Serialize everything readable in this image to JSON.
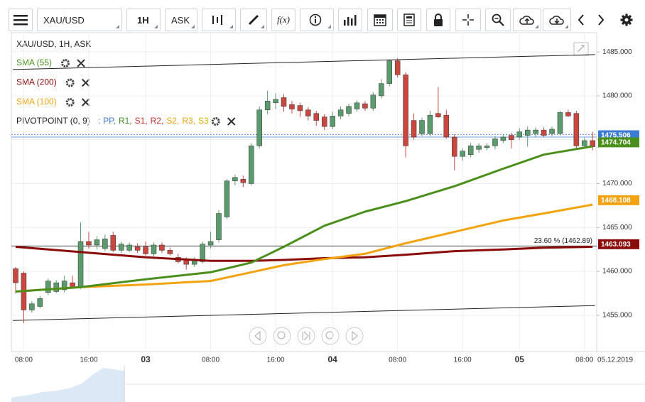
{
  "toolbar": {
    "symbol": "XAU/USD",
    "interval": "1H",
    "price_type": "ASK",
    "fx": "f(x)"
  },
  "chart_data": {
    "type": "candlestick",
    "title": "XAU/USD, 1H, ASK",
    "date_label": "05.12.2019",
    "categories": [
      null,
      "08:00",
      null,
      null,
      null,
      null,
      null,
      null,
      null,
      "16:00",
      null,
      null,
      null,
      null,
      null,
      null,
      "03",
      null,
      null,
      null,
      null,
      null,
      null,
      null,
      "08:00",
      null,
      null,
      null,
      null,
      null,
      null,
      null,
      "16:00",
      null,
      null,
      null,
      null,
      null,
      null,
      "04",
      null,
      null,
      null,
      null,
      null,
      null,
      null,
      "08:00",
      null,
      null,
      null,
      null,
      null,
      null,
      null,
      "16:00",
      null,
      null,
      null,
      null,
      null,
      null,
      "05",
      null,
      null,
      null,
      null,
      null,
      null,
      null,
      "08:00",
      null
    ],
    "candles": {
      "up_color": "#5a9a6c",
      "down_color": "#c9473f",
      "open": [
        1460.3,
        1459.8,
        1455.6,
        1456.0,
        1457.6,
        1457.7,
        1457.9,
        1458.7,
        1458.3,
        1463.4,
        1463.0,
        1462.6,
        1464.1,
        1462.4,
        1462.4,
        1462.8,
        1462.8,
        1462.0,
        1463.0,
        1462.4,
        1461.6,
        1461.3,
        1460.8,
        1461.1,
        1463.0,
        1463.6,
        1466.2,
        1470.3,
        1470.5,
        1470.0,
        1474.3,
        1478.4,
        1479.2,
        1479.8,
        1479.0,
        1478.9,
        1478.4,
        1478.0,
        1477.6,
        1476.5,
        1477.7,
        1478.0,
        1478.5,
        1479.1,
        1478.6,
        1480.0,
        1481.4,
        1484.0,
        1482.4,
        1477.2,
        1475.7,
        1475.7,
        1478.0,
        1477.8,
        1475.3,
        1473.1,
        1473.3,
        1473.9,
        1474.1,
        1474.3,
        1474.9,
        1475.5,
        1475.3,
        1475.5,
        1475.7,
        1476.1,
        1475.7,
        1475.7,
        1478.1,
        1478.0,
        1474.3,
        1474.9
      ],
      "high": [
        1460.5,
        1460.0,
        1456.6,
        1457.2,
        1459.2,
        1459.0,
        1459.5,
        1459.5,
        1465.6,
        1464.5,
        1464.0,
        1464.2,
        1464.5,
        1463.4,
        1463.3,
        1463.2,
        1463.4,
        1463.3,
        1463.3,
        1462.7,
        1462.0,
        1461.6,
        1461.6,
        1463.4,
        1464.5,
        1467.0,
        1470.5,
        1471.0,
        1470.9,
        1474.6,
        1478.8,
        1480.6,
        1480.3,
        1480.2,
        1479.4,
        1479.2,
        1478.7,
        1478.3,
        1477.9,
        1478.2,
        1478.8,
        1479.1,
        1479.5,
        1479.4,
        1480.4,
        1481.9,
        1484.2,
        1484.3,
        1482.7,
        1478.0,
        1477.5,
        1478.3,
        1481.0,
        1478.4,
        1475.6,
        1474.0,
        1474.6,
        1474.6,
        1474.6,
        1475.4,
        1475.6,
        1475.8,
        1476.3,
        1476.5,
        1476.4,
        1476.4,
        1476.5,
        1478.3,
        1478.4,
        1478.3,
        1475.2,
        1475.9
      ],
      "low": [
        1457.5,
        1454.1,
        1455.3,
        1455.8,
        1457.3,
        1457.5,
        1457.6,
        1458.0,
        1458.0,
        1462.6,
        1462.5,
        1462.3,
        1462.2,
        1462.1,
        1462.2,
        1462.1,
        1461.8,
        1461.7,
        1462.1,
        1461.8,
        1460.9,
        1460.2,
        1460.5,
        1460.9,
        1462.6,
        1463.3,
        1466.0,
        1469.8,
        1469.6,
        1469.8,
        1474.0,
        1477.9,
        1478.5,
        1478.2,
        1478.0,
        1477.6,
        1477.2,
        1476.6,
        1476.1,
        1476.2,
        1477.3,
        1477.7,
        1478.2,
        1478.3,
        1478.3,
        1479.7,
        1481.1,
        1482.1,
        1473.0,
        1475.0,
        1475.4,
        1475.4,
        1477.5,
        1475.1,
        1471.5,
        1472.6,
        1473.0,
        1473.5,
        1473.8,
        1473.9,
        1474.6,
        1474.0,
        1475.0,
        1474.2,
        1475.3,
        1475.3,
        1475.4,
        1475.5,
        1477.6,
        1474.0,
        1474.0,
        1473.8
      ],
      "close": [
        1458.7,
        1455.6,
        1456.3,
        1456.9,
        1458.9,
        1458.7,
        1458.9,
        1458.2,
        1463.4,
        1463.0,
        1463.6,
        1463.7,
        1462.4,
        1463.1,
        1463.0,
        1462.4,
        1462.0,
        1463.0,
        1462.4,
        1462.0,
        1461.1,
        1460.8,
        1461.3,
        1463.1,
        1463.4,
        1466.6,
        1470.3,
        1470.7,
        1470.1,
        1474.3,
        1478.4,
        1479.4,
        1479.6,
        1478.8,
        1478.5,
        1478.3,
        1477.7,
        1477.2,
        1476.5,
        1477.7,
        1478.4,
        1478.8,
        1479.2,
        1478.6,
        1480.1,
        1481.4,
        1484.0,
        1482.4,
        1474.3,
        1475.3,
        1477.2,
        1477.8,
        1477.6,
        1475.3,
        1473.1,
        1473.7,
        1474.3,
        1474.3,
        1474.3,
        1475.1,
        1475.3,
        1475.0,
        1475.9,
        1476.1,
        1476.1,
        1475.5,
        1476.2,
        1478.1,
        1477.7,
        1474.3,
        1474.9,
        1474.2
      ]
    },
    "series": [
      {
        "name": "SMA (55)",
        "color": "#4a8f1c",
        "x": [
          0,
          8,
          16,
          24,
          29,
          33,
          38,
          43,
          48,
          54,
          60,
          65,
          71
        ],
        "values": [
          1457.7,
          1458.2,
          1459.1,
          1459.9,
          1461.0,
          1462.8,
          1465.2,
          1466.8,
          1468.0,
          1469.7,
          1471.7,
          1473.3,
          1474.25
        ],
        "last_value": 1474.704
      },
      {
        "name": "SMA (200)",
        "color": "#8b0a0a",
        "x": [
          0,
          8,
          16,
          24,
          29,
          33,
          38,
          43,
          48,
          54,
          60,
          65,
          71
        ],
        "values": [
          1462.8,
          1462.2,
          1461.6,
          1461.2,
          1461.2,
          1461.3,
          1461.5,
          1461.6,
          1461.9,
          1462.3,
          1462.5,
          1462.7,
          1462.8
        ],
        "last_value": 1463.093
      },
      {
        "name": "SMA (100)",
        "color": "#f2a30f",
        "x": [
          0,
          8,
          16,
          24,
          29,
          33,
          38,
          43,
          48,
          54,
          60,
          65,
          71
        ],
        "values": [
          1457.7,
          1458.2,
          1458.5,
          1458.9,
          1459.9,
          1460.7,
          1461.4,
          1462.0,
          1463.2,
          1464.5,
          1465.8,
          1466.6,
          1467.6
        ],
        "last_value": 1468.108
      }
    ],
    "pivot": {
      "name": "PIVOTPOINT (0, 9)",
      "separator": ":",
      "levels": [
        {
          "name": "PP,",
          "color": "#3a7bd5"
        },
        {
          "name": "R1,",
          "color": "#3f8f2a"
        },
        {
          "name": "S1,",
          "color": "#c9302c"
        },
        {
          "name": "R2,",
          "color": "#c9302c"
        },
        {
          "name": "S2,",
          "color": "#f2a30f"
        },
        {
          "name": "R3,",
          "color": "#f2a30f"
        },
        {
          "name": "S3",
          "color": "#e0b000"
        }
      ]
    },
    "price_line": {
      "values": [
        1475.6,
        1475.3
      ],
      "tag": 1475.506,
      "color": "#3a7bd5"
    },
    "trendlines": [
      {
        "x": [
          -0.35,
          71.3
        ],
        "values": [
          1483.0,
          1484.7
        ]
      },
      {
        "x": [
          -0.35,
          71.3
        ],
        "values": [
          1454.4,
          1456.1
        ]
      }
    ],
    "fib": {
      "label": "23.60 % (1462.89)",
      "value": 1462.89
    },
    "ylim": [
      1451.1,
      1487.2
    ],
    "yticks": [
      {
        "value": 1455,
        "label": "1455.000"
      },
      {
        "value": 1460,
        "label": "1460.000"
      },
      {
        "value": 1465,
        "label": "1465.000"
      },
      {
        "value": 1470,
        "label": "1470.000"
      },
      {
        "value": 1475,
        "label": "1475.000"
      },
      {
        "value": 1480,
        "label": "1480.000"
      },
      {
        "value": 1485,
        "label": "1485.000"
      }
    ],
    "grid": true
  }
}
